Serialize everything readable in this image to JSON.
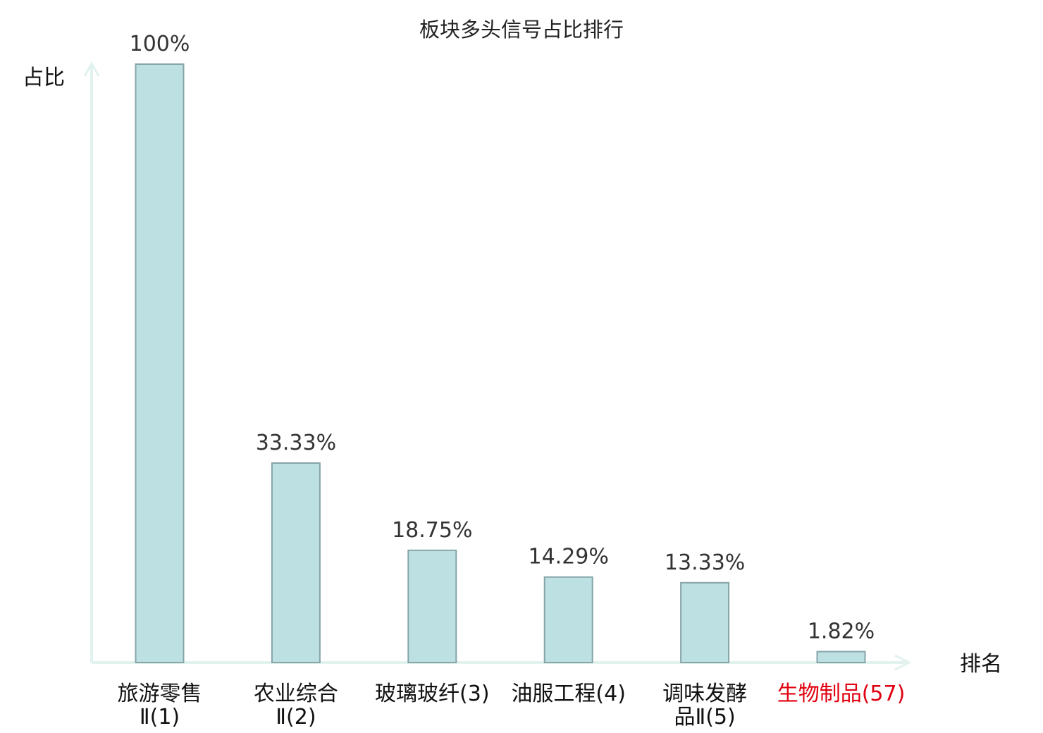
{
  "chart_data": {
    "type": "bar",
    "title": "板块多头信号占比排行",
    "xlabel": "排名",
    "ylabel": "占比",
    "ylim": [
      0,
      100
    ],
    "grid": false,
    "categories": [
      {
        "name": "旅游零售Ⅱ",
        "rank": "(1)",
        "lines": [
          "旅游零售",
          "Ⅱ(1)"
        ],
        "highlight": false
      },
      {
        "name": "农业综合Ⅱ",
        "rank": "(2)",
        "lines": [
          "农业综合",
          "Ⅱ(2)"
        ],
        "highlight": false
      },
      {
        "name": "玻璃玻纤",
        "rank": "(3)",
        "lines": [
          "玻璃玻纤(3)"
        ],
        "highlight": false
      },
      {
        "name": "油服工程",
        "rank": "(4)",
        "lines": [
          "油服工程(4)"
        ],
        "highlight": false
      },
      {
        "name": "调味发酵品Ⅱ",
        "rank": "(5)",
        "lines": [
          "调味发酵",
          "品Ⅱ(5)"
        ],
        "highlight": false
      },
      {
        "name": "生物制品",
        "rank": "(57)",
        "lines": [
          "生物制品(57)"
        ],
        "highlight": true
      }
    ],
    "values": [
      100,
      33.33,
      18.75,
      14.29,
      13.33,
      1.82
    ],
    "value_labels": [
      "100%",
      "33.33%",
      "18.75%",
      "14.29%",
      "13.33%",
      "1.82%"
    ],
    "colors": {
      "bar_fill": "#bde0e3",
      "bar_stroke": "#86a4a8",
      "axis": "#e1f2ef",
      "highlight_text": "#e0000f",
      "normal_text": "#111111"
    }
  }
}
